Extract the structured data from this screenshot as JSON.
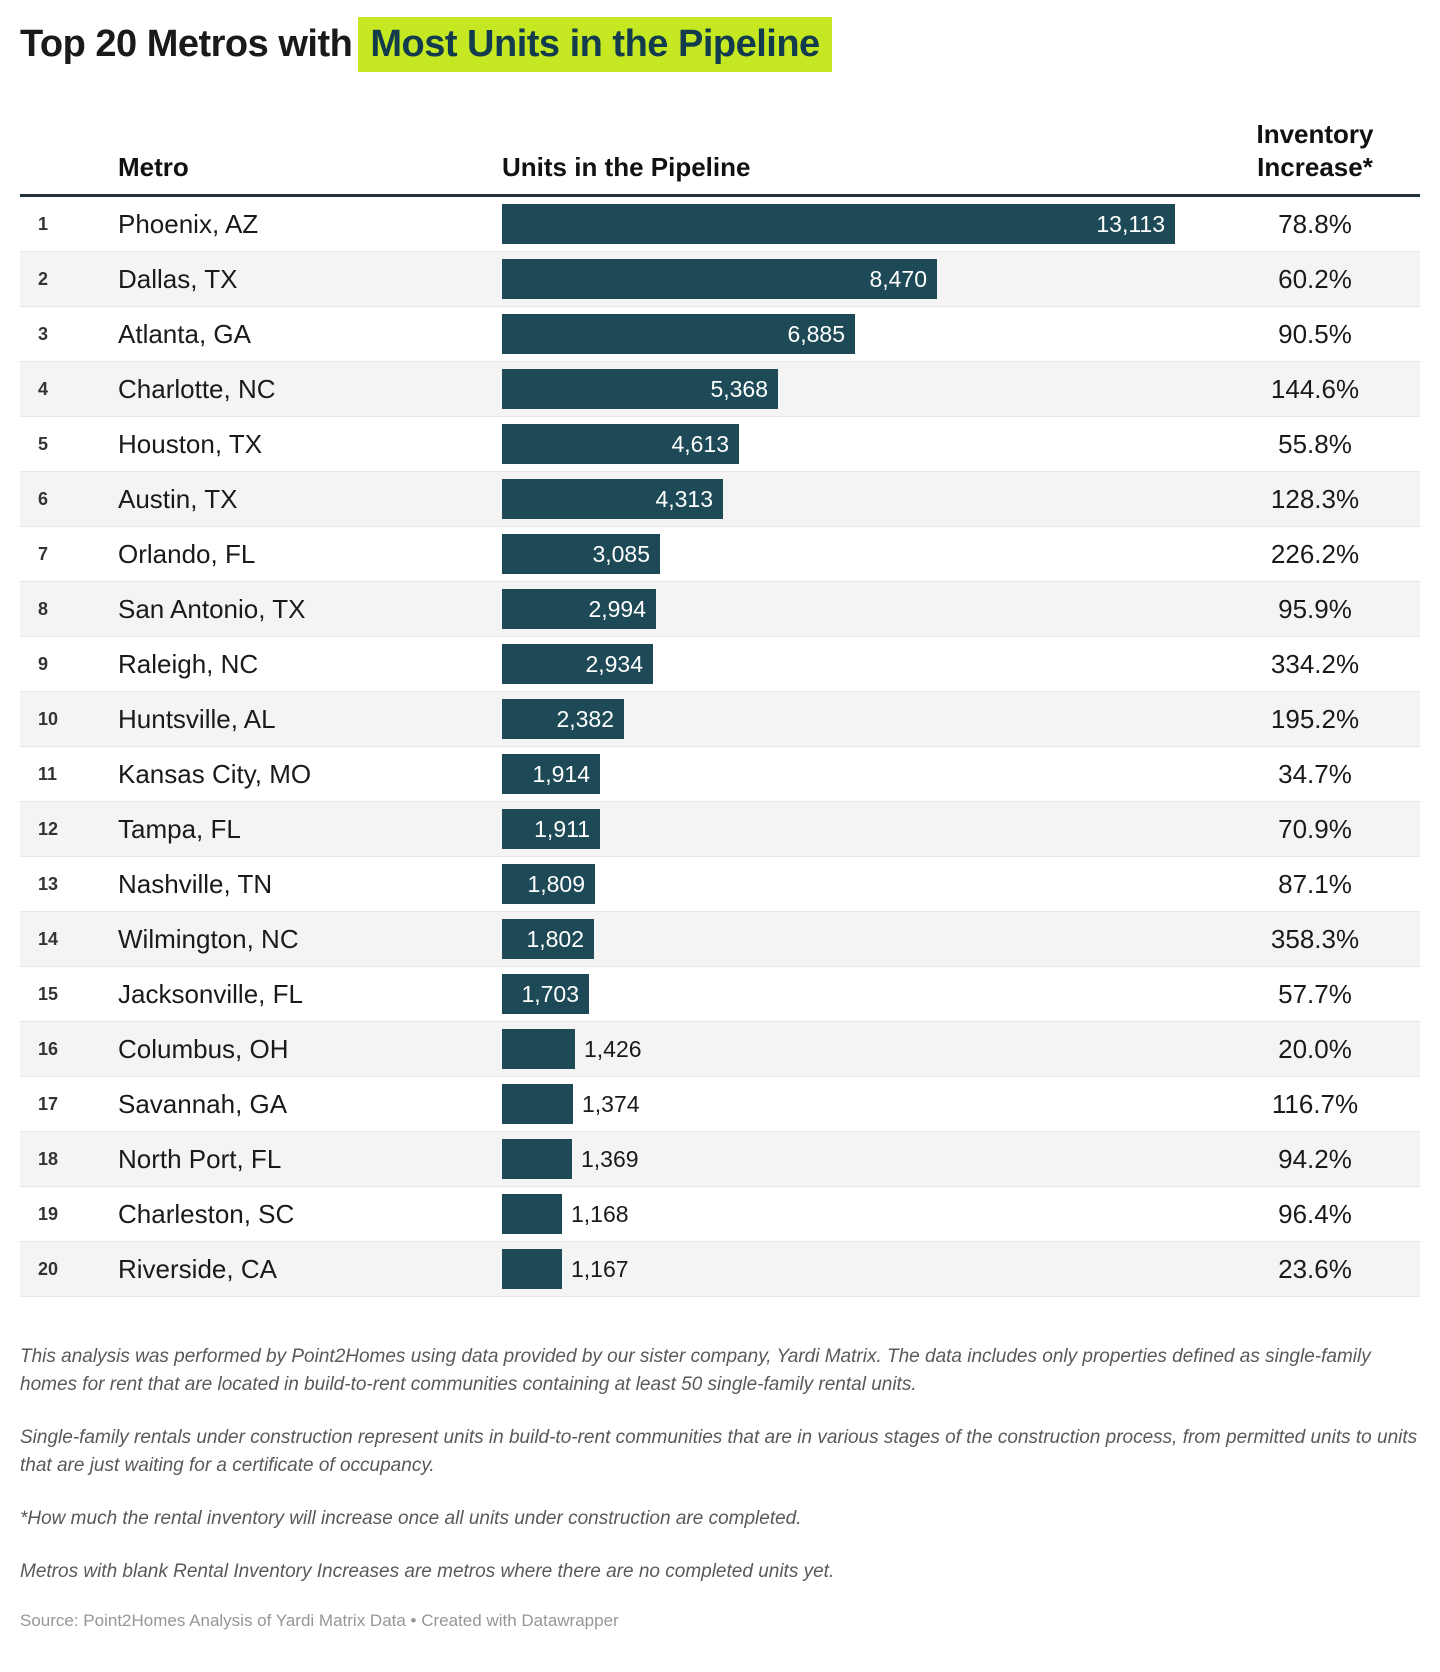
{
  "title": {
    "plain": "Top 20 Metros with",
    "highlight": "Most Units in the Pipeline"
  },
  "chart_data": {
    "type": "bar",
    "orientation": "horizontal",
    "title": "Top 20 Metros with Most Units in the Pipeline",
    "columns": {
      "metro": "Metro",
      "units": "Units in the Pipeline",
      "increase": "Inventory Increase*"
    },
    "max_units": 13113,
    "bar_color": "#1d4a56",
    "highlight_color": "#c6e822",
    "highlight_text_color": "#123c4e",
    "rows": [
      {
        "rank": "1",
        "metro": "Phoenix, AZ",
        "units": 13113,
        "units_label": "13,113",
        "increase": "78.8%"
      },
      {
        "rank": "2",
        "metro": "Dallas, TX",
        "units": 8470,
        "units_label": "8,470",
        "increase": "60.2%"
      },
      {
        "rank": "3",
        "metro": "Atlanta, GA",
        "units": 6885,
        "units_label": "6,885",
        "increase": "90.5%"
      },
      {
        "rank": "4",
        "metro": "Charlotte, NC",
        "units": 5368,
        "units_label": "5,368",
        "increase": "144.6%"
      },
      {
        "rank": "5",
        "metro": "Houston, TX",
        "units": 4613,
        "units_label": "4,613",
        "increase": "55.8%"
      },
      {
        "rank": "6",
        "metro": "Austin, TX",
        "units": 4313,
        "units_label": "4,313",
        "increase": "128.3%"
      },
      {
        "rank": "7",
        "metro": "Orlando, FL",
        "units": 3085,
        "units_label": "3,085",
        "increase": "226.2%"
      },
      {
        "rank": "8",
        "metro": "San Antonio, TX",
        "units": 2994,
        "units_label": "2,994",
        "increase": "95.9%"
      },
      {
        "rank": "9",
        "metro": "Raleigh, NC",
        "units": 2934,
        "units_label": "2,934",
        "increase": "334.2%"
      },
      {
        "rank": "10",
        "metro": "Huntsville, AL",
        "units": 2382,
        "units_label": "2,382",
        "increase": "195.2%"
      },
      {
        "rank": "11",
        "metro": "Kansas City, MO",
        "units": 1914,
        "units_label": "1,914",
        "increase": "34.7%"
      },
      {
        "rank": "12",
        "metro": "Tampa, FL",
        "units": 1911,
        "units_label": "1,911",
        "increase": "70.9%"
      },
      {
        "rank": "13",
        "metro": "Nashville, TN",
        "units": 1809,
        "units_label": "1,809",
        "increase": "87.1%"
      },
      {
        "rank": "14",
        "metro": "Wilmington, NC",
        "units": 1802,
        "units_label": "1,802",
        "increase": "358.3%"
      },
      {
        "rank": "15",
        "metro": "Jacksonville, FL",
        "units": 1703,
        "units_label": "1,703",
        "increase": "57.7%"
      },
      {
        "rank": "16",
        "metro": "Columbus, OH",
        "units": 1426,
        "units_label": "1,426",
        "increase": "20.0%"
      },
      {
        "rank": "17",
        "metro": "Savannah, GA",
        "units": 1374,
        "units_label": "1,374",
        "increase": "116.7%"
      },
      {
        "rank": "18",
        "metro": "North Port, FL",
        "units": 1369,
        "units_label": "1,369",
        "increase": "94.2%"
      },
      {
        "rank": "19",
        "metro": "Charleston, SC",
        "units": 1168,
        "units_label": "1,168",
        "increase": "96.4%"
      },
      {
        "rank": "20",
        "metro": "Riverside, CA",
        "units": 1167,
        "units_label": "1,167",
        "increase": "23.6%"
      }
    ]
  },
  "notes": {
    "p1": "This analysis was performed by Point2Homes using data provided by our sister company, Yardi Matrix. The data includes only properties defined as single-family homes for rent that are located in build-to-rent communities containing at least 50 single-family rental units.",
    "p2": "Single-family rentals under construction represent units in build-to-rent communities that are in various stages of the construction process, from permitted units to units that are just waiting for a certificate of occupancy.",
    "p3": "*How much the rental inventory will increase once all units under construction are completed.",
    "p4": "Metros with blank Rental Inventory Increases are metros where there are no completed units yet."
  },
  "source": "Source: Point2Homes Analysis of Yardi Matrix Data • Created with Datawrapper"
}
